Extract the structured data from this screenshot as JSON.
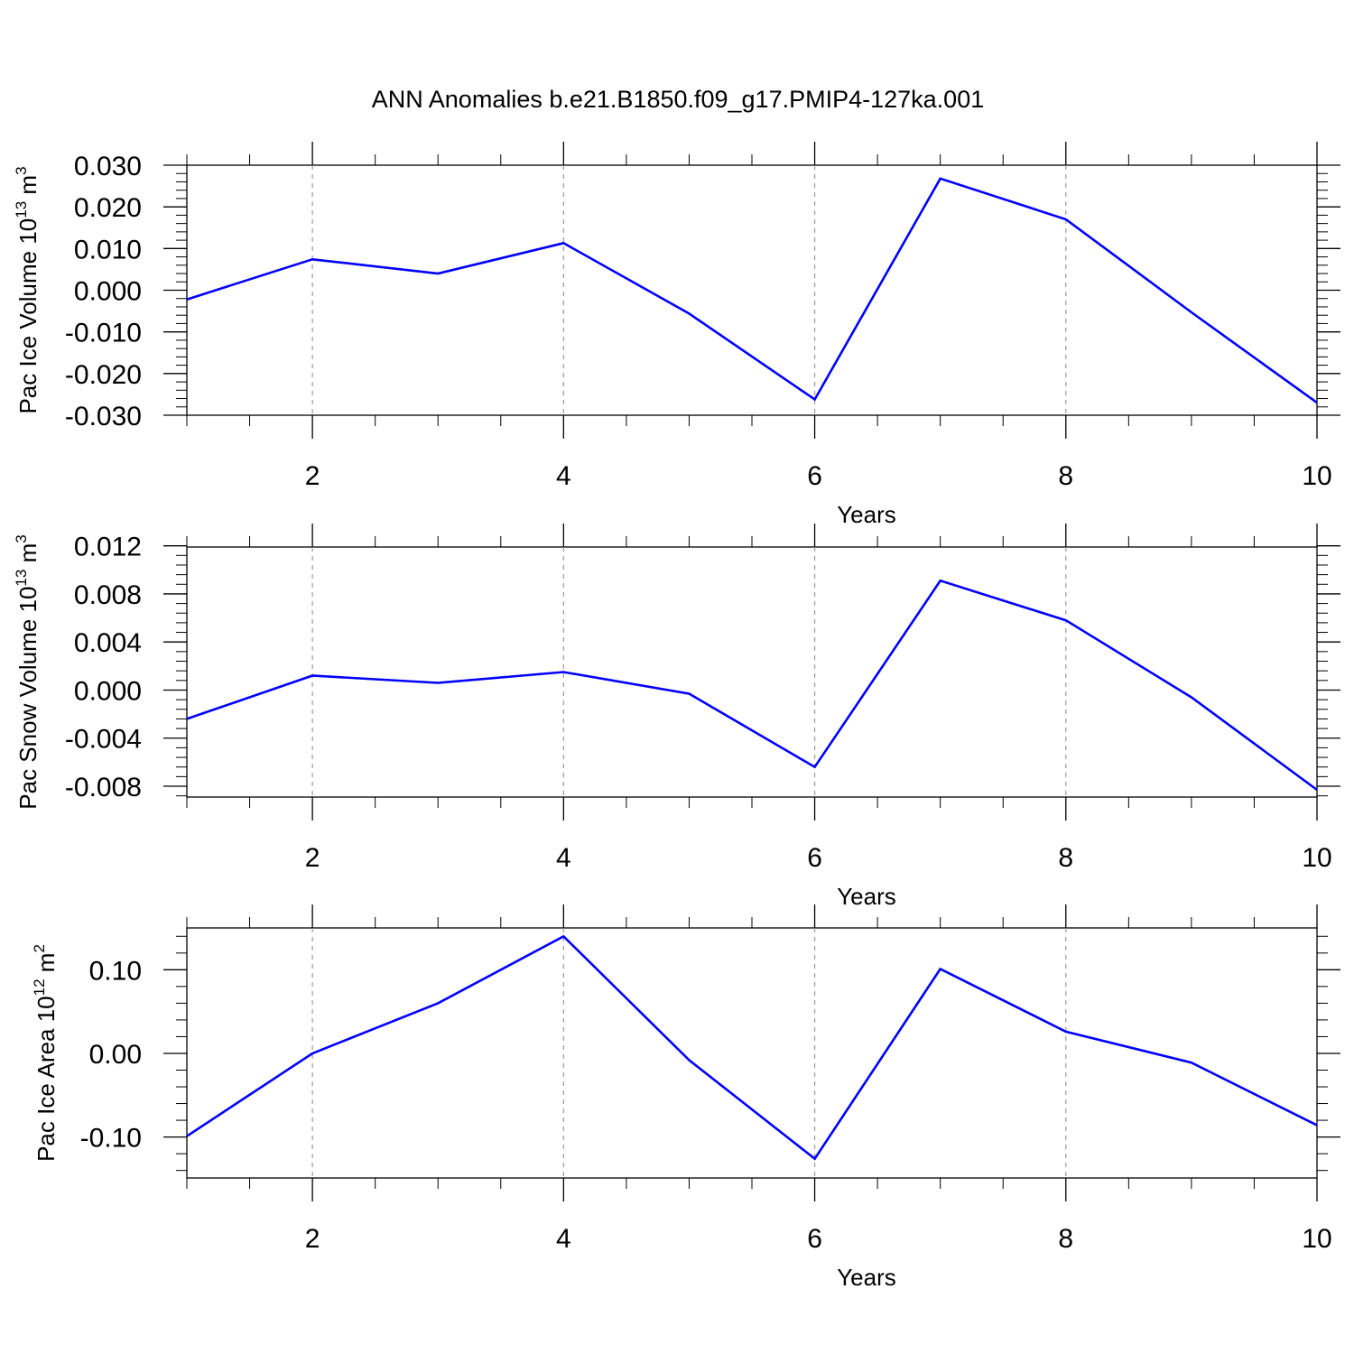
{
  "title": "ANN Anomalies b.e21.B1850.f09_g17.PMIP4-127ka.001",
  "chart_data": [
    {
      "type": "line",
      "xlabel": "Years",
      "ylabel": {
        "text": "Pac Ice Volume 10",
        "sup": "13",
        "unit": "m",
        "unit_sup": "3"
      },
      "x": [
        1,
        2,
        3,
        4,
        5,
        6,
        7,
        8,
        9,
        10
      ],
      "values": [
        -0.0022,
        0.0074,
        0.004,
        0.0113,
        -0.0056,
        -0.0262,
        0.0268,
        0.017,
        -0.0053,
        -0.027
      ],
      "xlim": [
        1,
        10
      ],
      "ylim": [
        -0.03,
        0.03
      ],
      "x_ticks": [
        2,
        4,
        6,
        8,
        10
      ],
      "x_tick_labels": [
        "2",
        "4",
        "6",
        "8",
        "10"
      ],
      "y_ticks": [
        -0.03,
        -0.02,
        -0.01,
        0.0,
        0.01,
        0.02,
        0.03
      ],
      "y_tick_labels": [
        "-0.030",
        "-0.020",
        "-0.010",
        "0.000",
        "0.010",
        "0.020",
        "0.030"
      ],
      "grid": "vertical dashed",
      "line_color": "#0000ff"
    },
    {
      "type": "line",
      "xlabel": "Years",
      "ylabel": {
        "text": "Pac Snow Volume 10",
        "sup": "13",
        "unit": "m",
        "unit_sup": "3"
      },
      "x": [
        1,
        2,
        3,
        4,
        5,
        6,
        7,
        8,
        9,
        10
      ],
      "values": [
        -0.0024,
        0.0012,
        0.0006,
        0.0015,
        -0.0003,
        -0.0064,
        0.0091,
        0.0058,
        -0.0006,
        -0.0083
      ],
      "xlim": [
        1,
        10
      ],
      "ylim": [
        -0.0089,
        0.0119
      ],
      "x_ticks": [
        2,
        4,
        6,
        8,
        10
      ],
      "x_tick_labels": [
        "2",
        "4",
        "6",
        "8",
        "10"
      ],
      "y_ticks": [
        -0.008,
        -0.004,
        0.0,
        0.004,
        0.008,
        0.012
      ],
      "y_tick_labels": [
        "-0.008",
        "-0.004",
        "0.000",
        "0.004",
        "0.008",
        "0.012"
      ],
      "grid": "vertical dashed",
      "line_color": "#0000ff"
    },
    {
      "type": "line",
      "xlabel": "Years",
      "ylabel": {
        "text": "Pac Ice Area 10",
        "sup": "12",
        "unit": "m",
        "unit_sup": "2"
      },
      "x": [
        1,
        2,
        3,
        4,
        5,
        6,
        7,
        8,
        9,
        10
      ],
      "values": [
        -0.099,
        0.0,
        0.06,
        0.14,
        -0.008,
        -0.126,
        0.101,
        0.026,
        -0.011,
        -0.086
      ],
      "xlim": [
        1,
        10
      ],
      "ylim": [
        -0.149,
        0.15
      ],
      "x_ticks": [
        2,
        4,
        6,
        8,
        10
      ],
      "x_tick_labels": [
        "2",
        "4",
        "6",
        "8",
        "10"
      ],
      "y_ticks": [
        -0.1,
        0.0,
        0.1
      ],
      "y_tick_labels": [
        "-0.10",
        "0.00",
        "0.10"
      ],
      "grid": "vertical dashed",
      "line_color": "#0000ff"
    }
  ]
}
